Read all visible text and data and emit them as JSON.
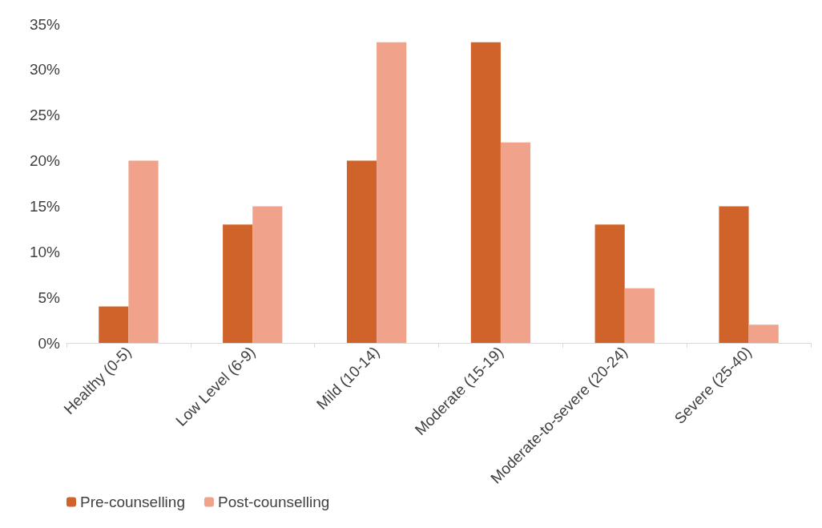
{
  "chart_data": {
    "type": "bar",
    "categories": [
      "Healthy (0-5)",
      "Low Level (6-9)",
      "Mild (10-14)",
      "Moderate (15-19)",
      "Moderate-to-severe (20-24)",
      "Severe (25-40)"
    ],
    "series": [
      {
        "name": "Pre-counselling",
        "color": "#d0632a",
        "values": [
          4,
          13,
          20,
          33,
          13,
          15
        ]
      },
      {
        "name": "Post-counselling",
        "color": "#f0a28a",
        "values": [
          20,
          15,
          33,
          22,
          6,
          2
        ]
      }
    ],
    "ylim": [
      0,
      35
    ],
    "yticks": [
      {
        "value": 0,
        "label": "0%"
      },
      {
        "value": 5,
        "label": "5%"
      },
      {
        "value": 10,
        "label": "10%"
      },
      {
        "value": 15,
        "label": "15%"
      },
      {
        "value": 20,
        "label": "20%"
      },
      {
        "value": 25,
        "label": "25%"
      },
      {
        "value": 30,
        "label": "30%"
      },
      {
        "value": 35,
        "label": "35%"
      }
    ],
    "grid": false,
    "legend": "bottom left"
  }
}
